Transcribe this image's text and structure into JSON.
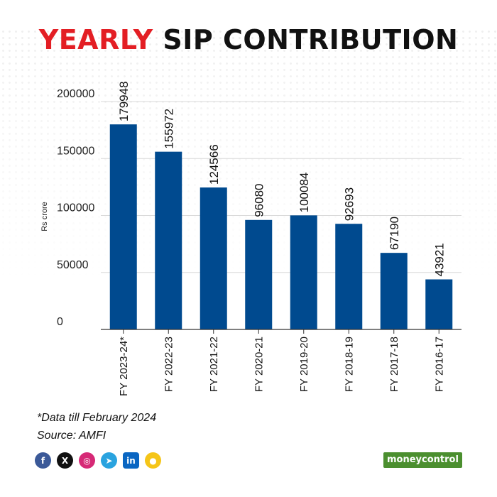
{
  "title": {
    "accent": "YEARLY",
    "rest": "SIP CONTRIBUTION"
  },
  "chart_data": {
    "type": "bar",
    "categories": [
      "FY 2023-24*",
      "FY 2022-23",
      "FY 2021-22",
      "FY 2020-21",
      "FY 2019-20",
      "FY 2018-19",
      "FY 2017-18",
      "FY 2016-17"
    ],
    "values": [
      179948,
      155972,
      124566,
      96080,
      100084,
      92693,
      67190,
      43921
    ],
    "data_labels": [
      "179948",
      "155972",
      "124566",
      "96080",
      "100084",
      "92693",
      "67190",
      "43921"
    ],
    "ylabel": "Rs crore",
    "xlabel": "",
    "ylim": [
      0,
      200000
    ],
    "yticks": [
      0,
      50000,
      100000,
      150000,
      200000
    ],
    "ytick_labels": [
      "0",
      "50000",
      "100000",
      "150000",
      "200000"
    ],
    "grid": true,
    "bar_color": "#004a8f"
  },
  "notes": {
    "data_note": "*Data till February 2024",
    "source": "Source: AMFI"
  },
  "social_icons": [
    {
      "name": "facebook-icon",
      "glyph": "f",
      "color": "#3b5998"
    },
    {
      "name": "x-twitter-icon",
      "glyph": "X",
      "color": "#111111"
    },
    {
      "name": "instagram-icon",
      "glyph": "◎",
      "color": "#d62976"
    },
    {
      "name": "telegram-icon",
      "glyph": "➤",
      "color": "#2aa3df"
    },
    {
      "name": "linkedin-icon",
      "glyph": "in",
      "color": "#0a66c2"
    },
    {
      "name": "koo-icon",
      "glyph": "●",
      "color": "#f5c518"
    }
  ],
  "brand": {
    "name": "moneycontrol"
  }
}
